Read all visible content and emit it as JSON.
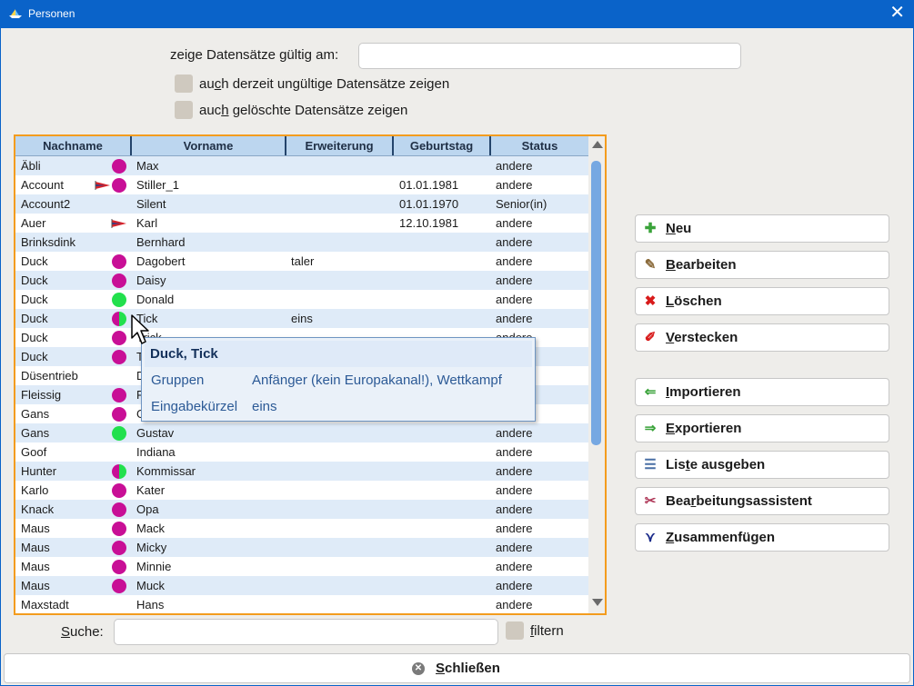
{
  "window": {
    "title": "Personen"
  },
  "filters": {
    "date_label": "zeige Datensätze gültig am:",
    "date_value": "",
    "invalid": {
      "pre": "au",
      "key": "c",
      "post": "h derzeit ungültige Datensätze zeigen"
    },
    "deleted": {
      "pre": "auc",
      "key": "h",
      "post": " gelöschte Datensätze zeigen"
    }
  },
  "table": {
    "columns": [
      "Nachname",
      "Vorname",
      "Erweiterung",
      "Geburtstag",
      "Status"
    ],
    "rows": [
      {
        "nachname": "Äbli",
        "vorname": "Max",
        "erweiterung": "",
        "geburtstag": "",
        "status": "andere",
        "dot": "magenta",
        "flag": false
      },
      {
        "nachname": "Account",
        "vorname": "Stiller_1",
        "erweiterung": "",
        "geburtstag": "01.01.1981",
        "status": "andere",
        "dot": "magenta",
        "flag": true
      },
      {
        "nachname": "Account2",
        "vorname": "Silent",
        "erweiterung": "",
        "geburtstag": "01.01.1970",
        "status": "Senior(in)",
        "dot": "",
        "flag": false
      },
      {
        "nachname": "Auer",
        "vorname": "Karl",
        "erweiterung": "",
        "geburtstag": "12.10.1981",
        "status": "andere",
        "dot": "",
        "flag": true
      },
      {
        "nachname": "Brinksdink",
        "vorname": "Bernhard",
        "erweiterung": "",
        "geburtstag": "",
        "status": "andere",
        "dot": "",
        "flag": false
      },
      {
        "nachname": "Duck",
        "vorname": "Dagobert",
        "erweiterung": "taler",
        "geburtstag": "",
        "status": "andere",
        "dot": "magenta",
        "flag": false
      },
      {
        "nachname": "Duck",
        "vorname": "Daisy",
        "erweiterung": "",
        "geburtstag": "",
        "status": "andere",
        "dot": "magenta",
        "flag": false
      },
      {
        "nachname": "Duck",
        "vorname": "Donald",
        "erweiterung": "",
        "geburtstag": "",
        "status": "andere",
        "dot": "green",
        "flag": false
      },
      {
        "nachname": "Duck",
        "vorname": "Tick",
        "erweiterung": "eins",
        "geburtstag": "",
        "status": "andere",
        "dot": "half",
        "flag": false
      },
      {
        "nachname": "Duck",
        "vorname": "Trick",
        "erweiterung": "",
        "geburtstag": "",
        "status": "andere",
        "dot": "magenta",
        "flag": false
      },
      {
        "nachname": "Duck",
        "vorname": "Track",
        "erweiterung": "",
        "geburtstag": "",
        "status": "andere",
        "dot": "magenta",
        "flag": false
      },
      {
        "nachname": "Düsentrieb",
        "vorname": "Daniel",
        "erweiterung": "",
        "geburtstag": "",
        "status": "andere",
        "dot": "",
        "flag": false
      },
      {
        "nachname": "Fleissig",
        "vorname": "Fritz",
        "erweiterung": "",
        "geburtstag": "",
        "status": "andere",
        "dot": "magenta",
        "flag": false
      },
      {
        "nachname": "Gans",
        "vorname": "Gustav",
        "erweiterung": "",
        "geburtstag": "",
        "status": "andere",
        "dot": "magenta",
        "flag": false
      },
      {
        "nachname": "Gans",
        "vorname": "Gustav",
        "erweiterung": "",
        "geburtstag": "",
        "status": "andere",
        "dot": "green",
        "flag": false
      },
      {
        "nachname": "Goof",
        "vorname": "Indiana",
        "erweiterung": "",
        "geburtstag": "",
        "status": "andere",
        "dot": "",
        "flag": false
      },
      {
        "nachname": "Hunter",
        "vorname": "Kommissar",
        "erweiterung": "",
        "geburtstag": "",
        "status": "andere",
        "dot": "half",
        "flag": false
      },
      {
        "nachname": "Karlo",
        "vorname": "Kater",
        "erweiterung": "",
        "geburtstag": "",
        "status": "andere",
        "dot": "magenta",
        "flag": false
      },
      {
        "nachname": "Knack",
        "vorname": "Opa",
        "erweiterung": "",
        "geburtstag": "",
        "status": "andere",
        "dot": "magenta",
        "flag": false
      },
      {
        "nachname": "Maus",
        "vorname": "Mack",
        "erweiterung": "",
        "geburtstag": "",
        "status": "andere",
        "dot": "magenta",
        "flag": false
      },
      {
        "nachname": "Maus",
        "vorname": "Micky",
        "erweiterung": "",
        "geburtstag": "",
        "status": "andere",
        "dot": "magenta",
        "flag": false
      },
      {
        "nachname": "Maus",
        "vorname": "Minnie",
        "erweiterung": "",
        "geburtstag": "",
        "status": "andere",
        "dot": "magenta",
        "flag": false
      },
      {
        "nachname": "Maus",
        "vorname": "Muck",
        "erweiterung": "",
        "geburtstag": "",
        "status": "andere",
        "dot": "magenta",
        "flag": false
      },
      {
        "nachname": "Maxstadt",
        "vorname": "Hans",
        "erweiterung": "",
        "geburtstag": "",
        "status": "andere",
        "dot": "",
        "flag": false
      }
    ]
  },
  "tooltip": {
    "title": "Duck, Tick",
    "rows": [
      {
        "key": "Gruppen",
        "value": "Anfänger (kein Europakanal!), Wettkampf"
      },
      {
        "key": "Eingabekürzel",
        "value": "eins"
      }
    ]
  },
  "buttons": [
    {
      "name": "neu-button",
      "icon": "plus-icon",
      "glyph": "✚",
      "color": "#3aa33a",
      "pre": "",
      "key": "N",
      "post": "eu"
    },
    {
      "name": "bearbeiten-button",
      "icon": "edit-icon",
      "glyph": "✎",
      "color": "#8a6a3a",
      "pre": "",
      "key": "B",
      "post": "earbeiten"
    },
    {
      "name": "loeschen-button",
      "icon": "delete-icon",
      "glyph": "✖",
      "color": "#d81a1a",
      "pre": "",
      "key": "L",
      "post": "öschen"
    },
    {
      "name": "verstecken-button",
      "icon": "hide-icon",
      "glyph": "✐",
      "color": "#d81a1a",
      "pre": "",
      "key": "V",
      "post": "erstecken"
    },
    {
      "name": "importieren-button",
      "icon": "import-icon",
      "glyph": "⇐",
      "color": "#3aa33a",
      "pre": "",
      "key": "I",
      "post": "mportieren"
    },
    {
      "name": "exportieren-button",
      "icon": "export-icon",
      "glyph": "⇒",
      "color": "#3aa33a",
      "pre": "",
      "key": "E",
      "post": "xportieren"
    },
    {
      "name": "liste-ausgeben-button",
      "icon": "list-icon",
      "glyph": "☰",
      "color": "#4a6fa5",
      "pre": "Lis",
      "key": "t",
      "post": "e ausgeben"
    },
    {
      "name": "bearbeitungsassistent-button",
      "icon": "wizard-icon",
      "glyph": "✂",
      "color": "#b03a5a",
      "pre": "Bea",
      "key": "r",
      "post": "beitungsassistent"
    },
    {
      "name": "zusammenfuegen-button",
      "icon": "merge-icon",
      "glyph": "⋎",
      "color": "#1a2a8a",
      "pre": "",
      "key": "Z",
      "post": "usammenfügen"
    }
  ],
  "search": {
    "pre": "",
    "key": "S",
    "post": "uche:",
    "value": "",
    "filter_pre": "",
    "filter_key": "f",
    "filter_post": "iltern"
  },
  "close_button": {
    "pre": "",
    "key": "S",
    "post": "chließen"
  },
  "colors": {
    "accent": "#0a63c9",
    "table_border": "#f39c1e",
    "dot_magenta": "#c80f96",
    "dot_green": "#22e04d"
  }
}
